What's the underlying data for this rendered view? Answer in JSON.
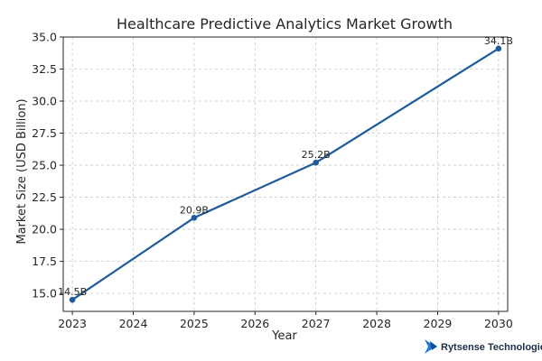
{
  "colors": {
    "line": "#1f5a9a",
    "grid": "#c8c8c8",
    "axis": "#262626",
    "brand": "#1f7ad6"
  },
  "brand": {
    "name": "Rytsense Technologies",
    "icon": "rytsense-logo-icon"
  },
  "chart_data": {
    "type": "line",
    "title": "Healthcare Predictive Analytics Market Growth",
    "xlabel": "Year",
    "ylabel": "Market Size (USD Billion)",
    "x_ticks": [
      2023,
      2024,
      2025,
      2026,
      2027,
      2028,
      2029,
      2030
    ],
    "y_ticks": [
      "15.0",
      "17.5",
      "20.0",
      "22.5",
      "25.0",
      "27.5",
      "30.0",
      "32.5",
      "35.0"
    ],
    "xlim": [
      2022.85,
      2030.15
    ],
    "ylim": [
      13.6,
      35.0
    ],
    "grid": true,
    "series": [
      {
        "x": [
          2023,
          2025,
          2027,
          2030
        ],
        "values": [
          14.5,
          20.9,
          25.2,
          34.1
        ],
        "labels": [
          "14.5B",
          "20.9B",
          "25.2B",
          "34.1B"
        ]
      }
    ]
  }
}
